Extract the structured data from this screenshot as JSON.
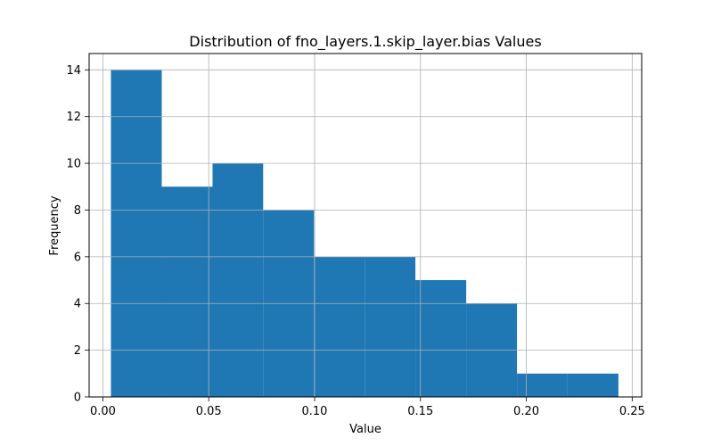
{
  "chart_data": {
    "type": "bar",
    "subtype": "histogram",
    "title": "Distribution of fno_layers.1.skip_layer.bias Values",
    "xlabel": "Value",
    "ylabel": "Frequency",
    "xlim": [
      -0.0065,
      0.2545
    ],
    "ylim": [
      0,
      14.7
    ],
    "xticks": [
      0.0,
      0.05,
      0.1,
      0.15,
      0.2,
      0.25
    ],
    "xtick_labels": [
      "0.00",
      "0.05",
      "0.10",
      "0.15",
      "0.20",
      "0.25"
    ],
    "yticks": [
      0,
      2,
      4,
      6,
      8,
      10,
      12,
      14
    ],
    "ytick_labels": [
      "0",
      "2",
      "4",
      "6",
      "8",
      "10",
      "12",
      "14"
    ],
    "grid": true,
    "bar_color": "#1f77b4",
    "bins": [
      {
        "x0": 0.0038,
        "x1": 0.0278,
        "value": 14
      },
      {
        "x0": 0.0278,
        "x1": 0.0518,
        "value": 9
      },
      {
        "x0": 0.0518,
        "x1": 0.0757,
        "value": 10
      },
      {
        "x0": 0.0757,
        "x1": 0.0997,
        "value": 8
      },
      {
        "x0": 0.0997,
        "x1": 0.1237,
        "value": 6
      },
      {
        "x0": 0.1237,
        "x1": 0.1476,
        "value": 6
      },
      {
        "x0": 0.1476,
        "x1": 0.1716,
        "value": 5
      },
      {
        "x0": 0.1716,
        "x1": 0.1956,
        "value": 4
      },
      {
        "x0": 0.1956,
        "x1": 0.2195,
        "value": 1
      },
      {
        "x0": 0.2195,
        "x1": 0.2435,
        "value": 1
      }
    ]
  }
}
